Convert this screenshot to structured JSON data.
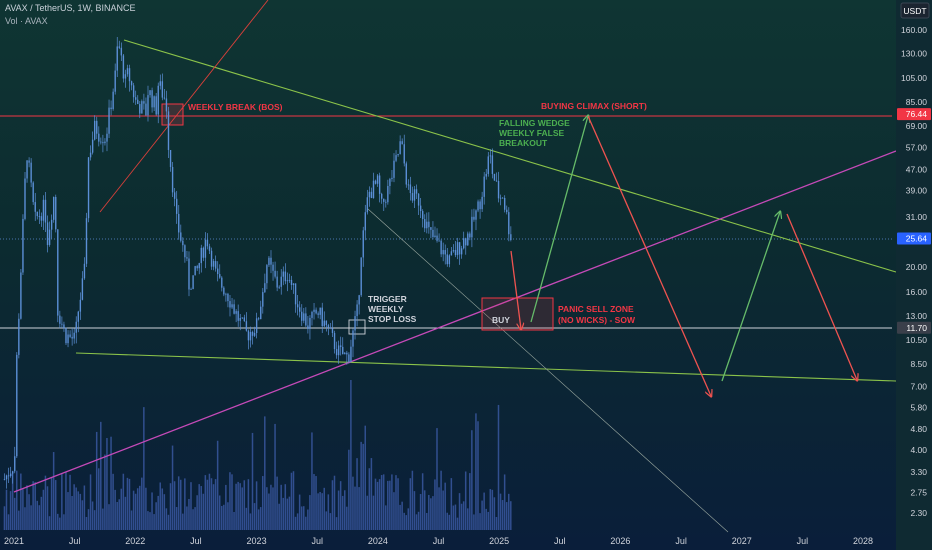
{
  "header": {
    "title": "AVAX / TetherUS, 1W, BINANCE",
    "volume_label": "Vol · AVAX",
    "currency_button": "USDT"
  },
  "chart_data": {
    "type": "candlestick",
    "symbol": "AVAX / TetherUS",
    "interval": "1W",
    "exchange": "BINANCE",
    "y_scale": "log",
    "y_ticks": [
      160.0,
      130.0,
      105.0,
      85.0,
      69.0,
      57.0,
      47.0,
      39.0,
      31.0,
      20.0,
      16.0,
      13.0,
      10.5,
      8.5,
      7.0,
      5.8,
      4.8,
      4.0,
      3.3,
      2.75,
      2.3
    ],
    "y_tick_labels": [
      "160.00",
      "130.00",
      "105.00",
      "85.00",
      "69.00",
      "57.00",
      "47.00",
      "39.00",
      "31.00",
      "20.00",
      "16.00",
      "13.00",
      "10.50",
      "8.50",
      "7.00",
      "5.80",
      "4.80",
      "4.00",
      "3.30",
      "2.75",
      "2.30"
    ],
    "x_tick_labels": [
      "2021",
      "Jul",
      "2022",
      "Jul",
      "2023",
      "Jul",
      "2024",
      "Jul",
      "2025",
      "Jul",
      "2026",
      "Jul",
      "2027",
      "Jul",
      "2028"
    ],
    "x_ticks": [
      "2021-01",
      "2021-07",
      "2022-01",
      "2022-07",
      "2023-01",
      "2023-07",
      "2024-01",
      "2024-07",
      "2025-01",
      "2025-07",
      "2026-01",
      "2026-07",
      "2027-01",
      "2027-07",
      "2028-01"
    ],
    "price_levels": [
      {
        "value": 76.44,
        "label": "76.44",
        "color": "#f23645"
      },
      {
        "value": 25.64,
        "label": "25.64",
        "color": "#2962ff"
      },
      {
        "value": 11.7,
        "label": "11.70",
        "color": "#3a3f4a"
      }
    ],
    "price_path": [
      [
        "2020-12",
        3.1
      ],
      [
        "2021-01",
        3.6
      ],
      [
        "2021-01",
        9.0
      ],
      [
        "2021-02",
        40.0
      ],
      [
        "2021-02",
        55.0
      ],
      [
        "2021-03",
        30.0
      ],
      [
        "2021-04",
        34.0
      ],
      [
        "2021-04",
        25.0
      ],
      [
        "2021-05",
        40.0
      ],
      [
        "2021-05",
        14.0
      ],
      [
        "2021-06",
        11.0
      ],
      [
        "2021-07",
        10.5
      ],
      [
        "2021-07",
        13.0
      ],
      [
        "2021-08",
        20.0
      ],
      [
        "2021-08",
        50.0
      ],
      [
        "2021-09",
        70.0
      ],
      [
        "2021-09",
        65.0
      ],
      [
        "2021-10",
        62.0
      ],
      [
        "2021-11",
        110.0
      ],
      [
        "2021-11",
        145.0
      ],
      [
        "2021-12",
        100.0
      ],
      [
        "2021-12",
        110.0
      ],
      [
        "2022-01",
        85.0
      ],
      [
        "2022-02",
        78.0
      ],
      [
        "2022-02",
        95.0
      ],
      [
        "2022-03",
        80.0
      ],
      [
        "2022-03",
        100.0
      ],
      [
        "2022-04",
        85.0
      ],
      [
        "2022-04",
        60.0
      ],
      [
        "2022-05",
        30.0
      ],
      [
        "2022-06",
        21.0
      ],
      [
        "2022-06",
        17.0
      ],
      [
        "2022-07",
        19.0
      ],
      [
        "2022-08",
        26.0
      ],
      [
        "2022-09",
        18.0
      ],
      [
        "2022-10",
        16.0
      ],
      [
        "2022-11",
        13.0
      ],
      [
        "2022-12",
        11.0
      ],
      [
        "2023-01",
        12.0
      ],
      [
        "2023-02",
        21.0
      ],
      [
        "2023-03",
        17.0
      ],
      [
        "2023-04",
        19.0
      ],
      [
        "2023-05",
        14.5
      ],
      [
        "2023-06",
        12.0
      ],
      [
        "2023-07",
        13.5
      ],
      [
        "2023-08",
        11.5
      ],
      [
        "2023-09",
        9.5
      ],
      [
        "2023-10",
        9.0
      ],
      [
        "2023-11",
        14.0
      ],
      [
        "2023-11",
        22.0
      ],
      [
        "2023-12",
        38.0
      ],
      [
        "2024-01",
        42.0
      ],
      [
        "2024-01",
        33.0
      ],
      [
        "2024-02",
        40.0
      ],
      [
        "2024-03",
        55.0
      ],
      [
        "2024-03",
        60.0
      ],
      [
        "2024-04",
        38.0
      ],
      [
        "2024-05",
        36.0
      ],
      [
        "2024-06",
        27.0
      ],
      [
        "2024-07",
        24.0
      ],
      [
        "2024-08",
        21.0
      ],
      [
        "2024-09",
        24.0
      ],
      [
        "2024-10",
        27.0
      ],
      [
        "2024-11",
        35.0
      ],
      [
        "2024-12",
        54.0
      ],
      [
        "2024-12",
        47.0
      ],
      [
        "2025-01",
        36.0
      ],
      [
        "2025-01",
        39.0
      ],
      [
        "2025-02",
        27.0
      ],
      [
        "2025-02",
        25.64
      ]
    ],
    "annotations": [
      {
        "text": "WEEKLY BREAK (BOS)",
        "color": "#f23645"
      },
      {
        "text": "BUYING CLIMAX (SHORT)",
        "color": "#f23645"
      },
      {
        "text": "FALLING WEDGE",
        "color": "#4caf50"
      },
      {
        "text": "WEEKLY FALSE",
        "color": "#4caf50"
      },
      {
        "text": "BREAKOUT",
        "color": "#4caf50"
      },
      {
        "text": "TRIGGER",
        "color": "#d1d4dc"
      },
      {
        "text": "WEEKLY",
        "color": "#d1d4dc"
      },
      {
        "text": "STOP LOSS",
        "color": "#d1d4dc"
      },
      {
        "text": "BUY",
        "color": "#d1d4dc"
      },
      {
        "text": "PANIC SELL ZONE",
        "color": "#f23645"
      },
      {
        "text": "(NO WICKS) - SOW",
        "color": "#f23645"
      }
    ],
    "colors": {
      "candle": "#5b8fd6",
      "resistance": "#f23645",
      "wedge": "#8bc34a",
      "trendline": "#c54ab8",
      "projection_up": "#66bb6a",
      "projection_down": "#ef5350"
    },
    "grid": false
  }
}
